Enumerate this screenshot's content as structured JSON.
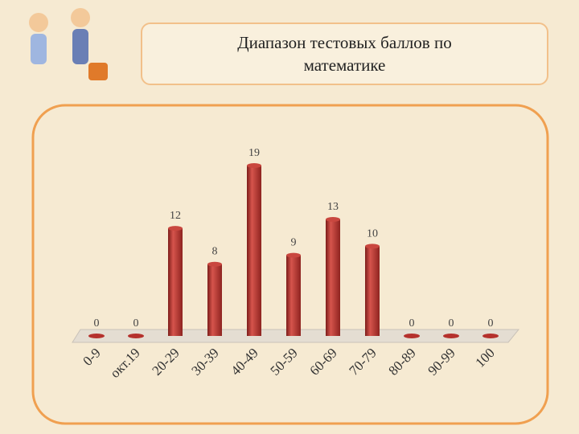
{
  "chart_data": {
    "type": "bar",
    "title": "Диапазон тестовых баллов по математике",
    "categories": [
      "0-9",
      "окт.19",
      "20-29",
      "30-39",
      "40-49",
      "50-59",
      "60-69",
      "70-79",
      "80-89",
      "90-99",
      "100"
    ],
    "values": [
      0,
      0,
      12,
      8,
      19,
      9,
      13,
      10,
      0,
      0,
      0
    ],
    "color": "#b5312c"
  }
}
